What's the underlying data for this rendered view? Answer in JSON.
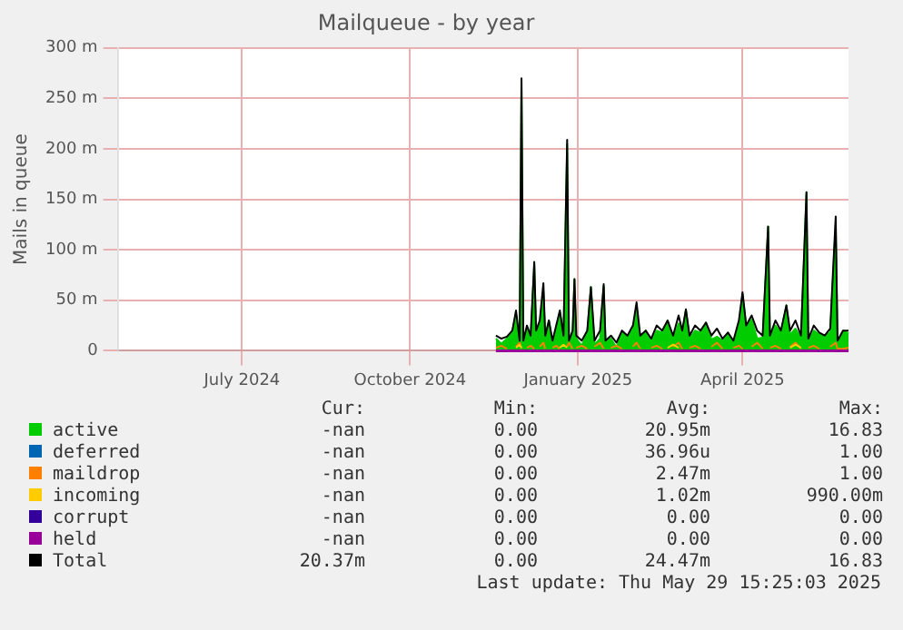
{
  "chart_data": {
    "type": "line",
    "title": "Mailqueue - by year",
    "ylabel": "Mails in queue",
    "x": [
      "2024-11-17",
      "2024-11-20",
      "2024-11-23",
      "2024-11-26",
      "2024-11-28",
      "2024-11-30",
      "2024-12-01",
      "2024-12-02",
      "2024-12-04",
      "2024-12-06",
      "2024-12-08",
      "2024-12-09",
      "2024-12-11",
      "2024-12-13",
      "2024-12-14",
      "2024-12-16",
      "2024-12-18",
      "2024-12-20",
      "2024-12-22",
      "2024-12-24",
      "2024-12-26",
      "2024-12-27",
      "2024-12-29",
      "2024-12-30",
      "2024-12-31",
      "2025-01-03",
      "2025-01-06",
      "2025-01-08",
      "2025-01-10",
      "2025-01-13",
      "2025-01-15",
      "2025-01-16",
      "2025-01-19",
      "2025-01-22",
      "2025-01-25",
      "2025-01-28",
      "2025-01-31",
      "2025-02-02",
      "2025-02-04",
      "2025-02-07",
      "2025-02-10",
      "2025-02-13",
      "2025-02-16",
      "2025-02-19",
      "2025-02-22",
      "2025-02-25",
      "2025-02-27",
      "2025-03-01",
      "2025-03-03",
      "2025-03-06",
      "2025-03-09",
      "2025-03-12",
      "2025-03-15",
      "2025-03-18",
      "2025-03-21",
      "2025-03-24",
      "2025-03-27",
      "2025-03-30",
      "2025-04-01",
      "2025-04-03",
      "2025-04-06",
      "2025-04-09",
      "2025-04-12",
      "2025-04-15",
      "2025-04-16",
      "2025-04-19",
      "2025-04-22",
      "2025-04-25",
      "2025-04-27",
      "2025-04-30",
      "2025-05-03",
      "2025-05-06",
      "2025-05-07",
      "2025-05-10",
      "2025-05-13",
      "2025-05-16",
      "2025-05-19",
      "2025-05-22",
      "2025-05-23",
      "2025-05-26",
      "2025-05-29"
    ],
    "series": [
      {
        "name": "active",
        "type": "area",
        "color": "#00cc00",
        "values": [
          12,
          7,
          12,
          20,
          36,
          2,
          268,
          10,
          22,
          10,
          86,
          20,
          26,
          59,
          13,
          30,
          7,
          20,
          38,
          15,
          205,
          2,
          18,
          71,
          12,
          5,
          18,
          63,
          6,
          12,
          64,
          10,
          12,
          3,
          18,
          15,
          21,
          40,
          13,
          20,
          9,
          20,
          18,
          30,
          11,
          27,
          18,
          41,
          12,
          20,
          18,
          28,
          11,
          14,
          10,
          18,
          7,
          25,
          56,
          25,
          31,
          12,
          13,
          123,
          12,
          25,
          18,
          45,
          16,
          22,
          13,
          157,
          9,
          20,
          16,
          15,
          18,
          125,
          8,
          20,
          17
        ]
      },
      {
        "name": "deferred",
        "color": "#0066b3",
        "values": [
          null,
          null,
          null,
          null,
          null,
          null,
          null,
          null,
          null,
          null,
          null,
          null,
          null,
          null,
          null,
          null,
          null,
          null,
          null,
          null,
          null,
          null,
          null,
          null,
          null,
          null,
          null,
          null,
          null,
          null,
          null,
          null,
          null,
          null,
          null,
          null,
          null,
          null,
          null,
          null,
          null,
          null,
          null,
          null,
          null,
          null,
          null,
          null,
          null,
          null,
          null,
          null,
          null,
          null,
          null,
          null,
          null,
          null,
          null,
          null,
          null,
          null,
          null,
          null,
          null,
          null,
          null,
          null,
          null,
          null,
          null,
          null,
          null,
          null,
          null,
          null,
          null,
          null,
          null,
          null,
          null
        ]
      },
      {
        "name": "maildrop",
        "color": "#ff8000",
        "values": [
          3,
          5,
          2,
          null,
          4,
          8,
          2,
          null,
          3,
          5,
          2,
          null,
          4,
          8,
          2,
          null,
          3,
          5,
          2,
          null,
          4,
          8,
          2,
          null,
          3,
          5,
          2,
          null,
          4,
          8,
          2,
          null,
          3,
          5,
          2,
          null,
          4,
          8,
          2,
          null,
          3,
          5,
          2,
          null,
          4,
          8,
          2,
          null,
          3,
          5,
          2,
          null,
          4,
          8,
          2,
          null,
          3,
          5,
          2,
          null,
          4,
          8,
          2,
          null,
          3,
          5,
          2,
          null,
          4,
          8,
          2,
          null,
          3,
          5,
          2,
          null,
          4,
          8,
          2,
          2,
          3
        ]
      },
      {
        "name": "incoming",
        "color": "#ffcc00",
        "values": [
          null,
          null,
          null,
          null,
          3,
          6,
          3,
          null,
          null,
          null,
          null,
          null,
          null,
          null,
          null,
          null,
          null,
          null,
          3,
          6,
          3,
          null,
          null,
          null,
          null,
          null,
          null,
          null,
          null,
          null,
          null,
          null,
          null,
          null,
          null,
          null,
          null,
          null,
          null,
          null,
          null,
          null,
          null,
          3,
          6,
          3,
          null,
          null,
          null,
          null,
          null,
          null,
          null,
          null,
          null,
          null,
          null,
          null,
          null,
          null,
          null,
          null,
          null,
          null,
          null,
          null,
          null,
          null,
          3,
          6,
          3,
          null,
          null,
          null,
          null,
          null,
          null,
          null,
          null,
          null,
          null
        ]
      },
      {
        "name": "corrupt",
        "color": "#330099",
        "values": [
          null,
          null,
          null,
          null,
          null,
          null,
          null,
          null,
          null,
          null,
          null,
          null,
          null,
          null,
          null,
          null,
          null,
          null,
          null,
          null,
          null,
          null,
          null,
          null,
          null,
          null,
          null,
          null,
          null,
          null,
          null,
          null,
          null,
          null,
          null,
          null,
          null,
          null,
          null,
          null,
          null,
          null,
          null,
          null,
          null,
          null,
          null,
          null,
          null,
          null,
          null,
          null,
          null,
          null,
          null,
          null,
          null,
          null,
          null,
          null,
          null,
          null,
          null,
          null,
          null,
          null,
          null,
          null,
          null,
          null,
          null,
          null,
          null,
          null,
          null,
          null,
          null,
          null,
          null,
          null,
          null
        ]
      },
      {
        "name": "held",
        "color": "#990099",
        "values": [
          0,
          0,
          0,
          0,
          0,
          0,
          0,
          0,
          0,
          0,
          0,
          0,
          0,
          0,
          0,
          0,
          0,
          0,
          0,
          0,
          0,
          0,
          0,
          0,
          0,
          0,
          0,
          0,
          0,
          0,
          0,
          0,
          0,
          0,
          0,
          0,
          0,
          0,
          0,
          0,
          0,
          0,
          0,
          0,
          0,
          0,
          0,
          0,
          0,
          0,
          0,
          0,
          0,
          0,
          0,
          0,
          0,
          0,
          0,
          0,
          0,
          0,
          0,
          0,
          0,
          0,
          0,
          0,
          0,
          0,
          0,
          0,
          0,
          0,
          0,
          0,
          0,
          0,
          0,
          0,
          0
        ]
      },
      {
        "name": "Total",
        "color": "#000000",
        "values": [
          15,
          12,
          14,
          20,
          40,
          10,
          270,
          10,
          25,
          15,
          88,
          20,
          30,
          67,
          15,
          30,
          10,
          25,
          40,
          15,
          209,
          10,
          20,
          71,
          15,
          10,
          20,
          63,
          10,
          20,
          66,
          10,
          15,
          8,
          20,
          15,
          25,
          48,
          15,
          20,
          12,
          25,
          20,
          30,
          15,
          35,
          20,
          41,
          15,
          25,
          20,
          28,
          15,
          22,
          12,
          18,
          10,
          30,
          58,
          25,
          35,
          20,
          15,
          123,
          15,
          30,
          20,
          45,
          20,
          30,
          15,
          157,
          12,
          25,
          18,
          15,
          22,
          133,
          10,
          20,
          20
        ]
      }
    ],
    "xlim": [
      "2024-04-24",
      "2025-05-29"
    ],
    "xticks": [
      {
        "value": "2024-07-01",
        "label": "July 2024"
      },
      {
        "value": "2024-10-01",
        "label": "October 2024"
      },
      {
        "value": "2025-01-01",
        "label": "January 2025"
      },
      {
        "value": "2025-04-01",
        "label": "April 2025"
      }
    ],
    "ylim": [
      0,
      300
    ],
    "yticks": [
      0,
      {
        "value": 50,
        "label": "50 m"
      },
      {
        "value": 100,
        "label": "100 m"
      },
      {
        "value": 150,
        "label": "150 m"
      },
      {
        "value": 200,
        "label": "200 m"
      },
      {
        "value": 250,
        "label": "250 m"
      },
      {
        "value": 300,
        "label": "300 m"
      }
    ],
    "grid": true,
    "legend": "bottom",
    "marker": "none",
    "line_style": "solid",
    "annotations": [
      "Cur:",
      "Min:",
      "Avg:",
      "Max:",
      "-nan",
      "0.00",
      "20.95m",
      "16.83",
      "-nan",
      "0.00",
      "36.96u",
      "1.00",
      "-nan",
      "0.00",
      "2.47m",
      "1.00",
      "-nan",
      "0.00",
      "1.02m",
      "990.00m",
      "-nan",
      "0.00",
      "0.00",
      "0.00",
      "-nan",
      "0.00",
      "0.00",
      "0.00",
      "20.37m",
      "0.00",
      "24.47m",
      "16.83",
      "Last update: Thu May 29 15:25:03 2025"
    ]
  }
}
